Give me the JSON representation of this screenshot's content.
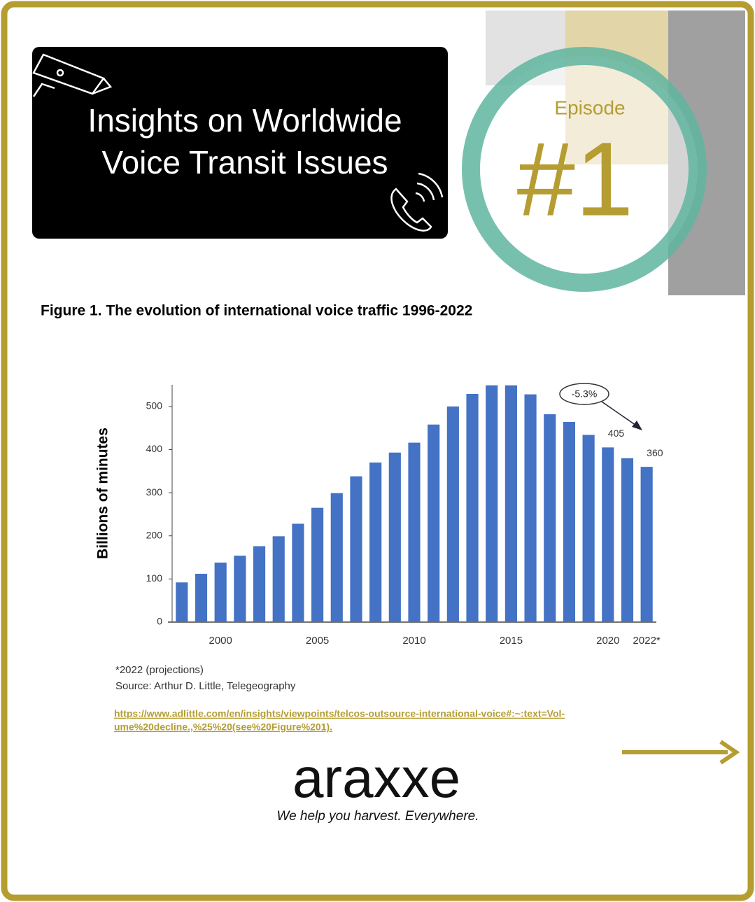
{
  "header": {
    "title_lines": [
      "Insights on Worldwide",
      "Voice Transit Issues"
    ],
    "episode_label": "Episode",
    "episode_number": "#1"
  },
  "chart_data": {
    "type": "bar",
    "title": "Figure 1. The evolution of international voice traffic 1996-2022",
    "y_label": "Billions of minutes",
    "categories": [
      null,
      null,
      "2000",
      null,
      null,
      null,
      null,
      "2005",
      null,
      null,
      null,
      null,
      "2010",
      null,
      null,
      null,
      null,
      "2015",
      null,
      null,
      null,
      null,
      "2020",
      null,
      "2022*"
    ],
    "values": [
      92,
      112,
      138,
      154,
      176,
      199,
      228,
      265,
      299,
      338,
      370,
      393,
      416,
      458,
      500,
      529,
      549,
      549,
      528,
      482,
      464,
      434,
      405,
      380,
      360
    ],
    "value_labels": [
      null,
      null,
      null,
      null,
      null,
      null,
      null,
      null,
      null,
      null,
      null,
      null,
      null,
      null,
      null,
      null,
      null,
      null,
      null,
      null,
      null,
      null,
      "405",
      null,
      "360"
    ],
    "color": "#4472c4",
    "ylim": [
      0,
      550
    ],
    "yticks": [
      0,
      100,
      200,
      300,
      400,
      500
    ],
    "grid": false,
    "annotation": "-5.3%",
    "notes": [
      "*2022 (projections)",
      "Source: Arthur D. Little, Telegeography"
    ]
  },
  "link_lines": [
    "https://www.adlittle.com/en/insights/viewpoints/telcos-outsource-international-voice#:~:text=Vol-",
    "ume%20decline.,%25%20(see%20Figure%201)."
  ],
  "footer": {
    "logo": "araxxe",
    "tagline": "We help you harvest. Everywhere."
  }
}
